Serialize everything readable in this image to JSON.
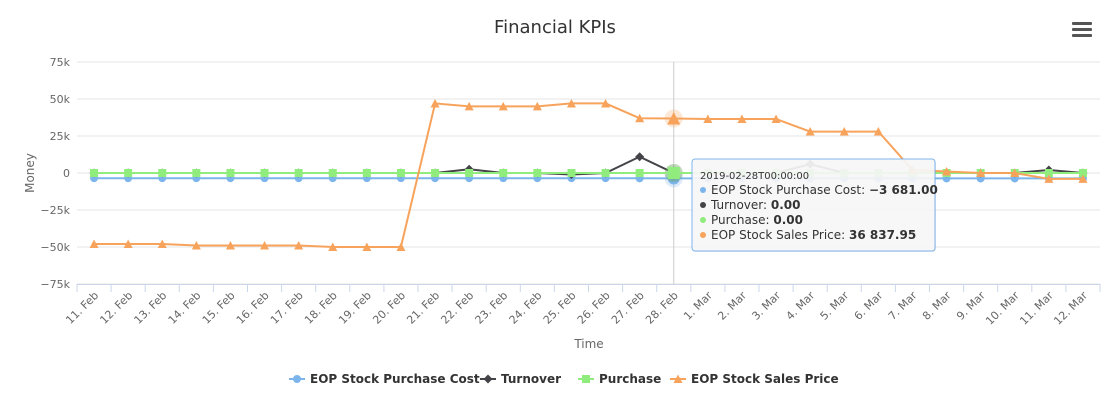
{
  "chart_data": {
    "type": "line",
    "title": "Financial KPIs",
    "xlabel": "Time",
    "ylabel": "Money",
    "categories": [
      "11. Feb",
      "12. Feb",
      "13. Feb",
      "14. Feb",
      "15. Feb",
      "16. Feb",
      "17. Feb",
      "18. Feb",
      "19. Feb",
      "20. Feb",
      "21. Feb",
      "22. Feb",
      "23. Feb",
      "24. Feb",
      "25. Feb",
      "26. Feb",
      "27. Feb",
      "28. Feb",
      "1. Mar",
      "2. Mar",
      "3. Mar",
      "4. Mar",
      "5. Mar",
      "6. Mar",
      "7. Mar",
      "8. Mar",
      "9. Mar",
      "10. Mar",
      "11. Mar",
      "12. Mar"
    ],
    "y_ticks": [
      "75k",
      "50k",
      "25k",
      "0",
      "−25k",
      "−50k",
      "−75k"
    ],
    "ylim": [
      -75000,
      75000
    ],
    "grid": true,
    "legend_position": "bottom",
    "series": [
      {
        "name": "EOP Stock Purchase Cost",
        "color": "#7cb5ec",
        "marker": "circle",
        "values": [
          -3500,
          -3500,
          -3500,
          -3500,
          -3500,
          -3500,
          -3500,
          -3500,
          -3500,
          -3500,
          -3500,
          -3500,
          -3500,
          -3500,
          -3500,
          -3500,
          -3600,
          -3681,
          -3681,
          -3681,
          -3681,
          -3681,
          -3681,
          -3681,
          -3681,
          -3681,
          -3681,
          -3681,
          -3681,
          -3681
        ]
      },
      {
        "name": "Turnover",
        "color": "#434348",
        "marker": "diamond",
        "values": [
          0,
          0,
          0,
          0,
          0,
          0,
          0,
          0,
          0,
          0,
          0,
          2500,
          0,
          0,
          -1000,
          0,
          11000,
          0,
          0,
          0,
          0,
          6000,
          0,
          0,
          0,
          0,
          0,
          0,
          2000,
          0
        ]
      },
      {
        "name": "Purchase",
        "color": "#90ed7d",
        "marker": "square",
        "values": [
          0,
          0,
          0,
          0,
          0,
          0,
          0,
          0,
          0,
          0,
          0,
          0,
          0,
          0,
          0,
          0,
          0,
          0,
          0,
          0,
          0,
          0,
          0,
          0,
          0,
          0,
          0,
          0,
          0,
          0
        ]
      },
      {
        "name": "EOP Stock Sales Price",
        "color": "#f7a35c",
        "marker": "triangle",
        "values": [
          -48000,
          -48000,
          -48000,
          -49000,
          -49000,
          -49000,
          -49000,
          -50000,
          -50000,
          -50000,
          47000,
          45000,
          45000,
          45000,
          47000,
          47000,
          37000,
          36837.95,
          36500,
          36500,
          36500,
          28000,
          28000,
          28000,
          2000,
          1000,
          0,
          0,
          -4000,
          -4000
        ]
      }
    ],
    "tooltip": {
      "category_index": 17,
      "header": "2019-02-28T00:00:00",
      "rows": [
        {
          "label": "EOP Stock Purchase Cost: ",
          "value": "−3 681.00",
          "color": "#7cb5ec"
        },
        {
          "label": "Turnover: ",
          "value": "0.00",
          "color": "#434348"
        },
        {
          "label": "Purchase: ",
          "value": "0.00",
          "color": "#90ed7d"
        },
        {
          "label": "EOP Stock Sales Price: ",
          "value": "36 837.95",
          "color": "#f7a35c"
        }
      ]
    }
  }
}
